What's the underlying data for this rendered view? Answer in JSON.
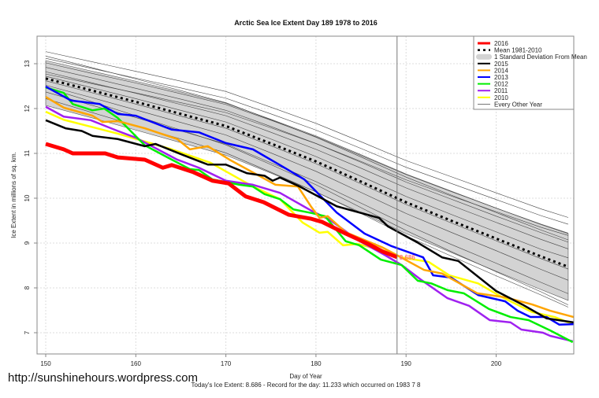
{
  "chart_data": {
    "type": "line",
    "title": "Arctic Sea Ice Extent Day 189 1978 to 2016",
    "xlabel": "Day of Year",
    "ylabel": "Ice Extent in millions of sq. km.",
    "subtitle": "Today's Ice Extent: 8.686  - Record for the day: 11.233 which occurred on 1983 7 8",
    "xlim": [
      149,
      209
    ],
    "ylim": [
      6.6,
      13.6
    ],
    "x_ticks": [
      150,
      160,
      170,
      180,
      190,
      200
    ],
    "y_ticks": [
      7,
      8,
      9,
      10,
      11,
      12,
      13
    ],
    "grid": true,
    "legend_position": "top-right",
    "current_day": 189,
    "current_value_label": "8.686",
    "legend": [
      {
        "label": "2016",
        "color": "#ff0000",
        "style": "thick"
      },
      {
        "label": "Mean 1981-2010",
        "color": "#000000",
        "style": "dashed"
      },
      {
        "label": "1 Standard Deviation From Mean",
        "color": "#d3d3d3",
        "style": "band"
      },
      {
        "label": "2015",
        "color": "#000000",
        "style": "line"
      },
      {
        "label": "2014",
        "color": "#ffa500",
        "style": "line"
      },
      {
        "label": "2013",
        "color": "#0000ff",
        "style": "line"
      },
      {
        "label": "2012",
        "color": "#00ee00",
        "style": "line"
      },
      {
        "label": "2011",
        "color": "#a020f0",
        "style": "line"
      },
      {
        "label": "2010",
        "color": "#ffff00",
        "style": "line"
      },
      {
        "label": "Every Other Year",
        "color": "#555555",
        "style": "thin"
      }
    ],
    "grid_days": [
      150,
      155,
      160,
      165,
      170,
      175,
      180,
      185,
      190,
      195,
      200,
      205,
      208
    ],
    "mean": [
      12.67,
      12.41,
      12.15,
      11.88,
      11.61,
      11.22,
      10.82,
      10.37,
      9.91,
      9.5,
      9.1,
      8.7,
      8.47
    ],
    "sd_upper": [
      13.07,
      12.84,
      12.61,
      12.37,
      12.12,
      11.76,
      11.39,
      10.97,
      10.54,
      10.16,
      9.78,
      9.41,
      9.21
    ],
    "sd_lower": [
      12.07,
      11.8,
      11.52,
      11.24,
      10.96,
      10.56,
      10.14,
      9.68,
      9.21,
      8.79,
      8.37,
      7.96,
      7.72
    ],
    "other_years": [
      [
        13.27,
        13.05,
        12.83,
        12.61,
        12.38,
        12.03,
        11.67,
        11.26,
        10.84,
        10.48,
        10.12,
        9.76,
        9.57
      ],
      [
        13.12,
        12.9,
        12.68,
        12.46,
        12.23,
        11.88,
        11.52,
        11.11,
        10.69,
        10.33,
        9.97,
        9.61,
        9.42
      ],
      [
        13.02,
        12.79,
        12.57,
        12.33,
        12.09,
        11.74,
        11.37,
        10.95,
        10.53,
        10.15,
        9.78,
        9.42,
        9.22
      ],
      [
        12.92,
        12.69,
        12.45,
        12.21,
        11.96,
        11.6,
        11.22,
        10.8,
        10.36,
        9.98,
        9.6,
        9.23,
        9.02
      ],
      [
        12.82,
        12.58,
        12.34,
        12.09,
        11.84,
        11.47,
        11.09,
        10.67,
        10.23,
        9.84,
        9.46,
        9.08,
        8.87
      ],
      [
        12.72,
        12.47,
        12.22,
        11.96,
        11.7,
        11.32,
        10.93,
        10.49,
        10.04,
        9.64,
        9.25,
        8.86,
        8.67
      ],
      [
        12.62,
        12.36,
        12.1,
        11.83,
        11.56,
        11.17,
        10.77,
        10.32,
        9.86,
        9.45,
        9.05,
        8.65,
        8.42
      ],
      [
        12.52,
        12.25,
        11.97,
        11.69,
        11.41,
        11.01,
        10.6,
        10.13,
        9.66,
        9.24,
        8.83,
        8.41,
        8.17
      ],
      [
        12.37,
        12.08,
        11.8,
        11.5,
        11.21,
        10.79,
        10.37,
        9.89,
        9.41,
        8.97,
        8.55,
        8.12,
        7.87
      ],
      [
        12.22,
        11.92,
        11.62,
        11.32,
        11.01,
        10.58,
        10.14,
        9.66,
        9.16,
        8.71,
        8.27,
        7.84,
        7.57
      ],
      [
        12.47,
        12.16,
        11.84,
        11.52,
        11.19,
        10.75,
        10.3,
        9.79,
        9.28,
        8.81,
        8.36,
        7.91,
        7.62
      ],
      [
        13.17,
        12.92,
        12.66,
        12.4,
        12.13,
        11.75,
        11.36,
        10.92,
        10.47,
        10.07,
        9.68,
        9.29,
        9.07
      ],
      [
        12.77,
        12.56,
        12.35,
        12.13,
        11.91,
        11.57,
        11.22,
        10.82,
        10.41,
        10.05,
        9.7,
        9.35,
        9.17
      ]
    ],
    "series": [
      {
        "name": "2010",
        "color": "#ffff00",
        "points": [
          [
            150,
            11.93
          ],
          [
            152,
            11.75
          ],
          [
            158,
            11.44
          ],
          [
            164,
            11.09
          ],
          [
            168.3,
            10.79
          ],
          [
            173,
            10.26
          ],
          [
            176,
            9.98
          ],
          [
            178.5,
            9.46
          ],
          [
            180.4,
            9.23
          ],
          [
            181.3,
            9.25
          ],
          [
            183,
            8.95
          ],
          [
            184.6,
            8.98
          ],
          [
            187.4,
            8.84
          ],
          [
            189.5,
            8.68
          ],
          [
            192.5,
            8.58
          ],
          [
            194.8,
            8.28
          ],
          [
            198,
            8.1
          ],
          [
            200.5,
            7.81
          ],
          [
            204,
            7.46
          ],
          [
            206.5,
            7.35
          ],
          [
            208.5,
            7.19
          ]
        ]
      },
      {
        "name": "2011",
        "color": "#a020f0",
        "points": [
          [
            150,
            12.04
          ],
          [
            152,
            11.82
          ],
          [
            155,
            11.74
          ],
          [
            158,
            11.5
          ],
          [
            160,
            11.35
          ],
          [
            164.6,
            10.86
          ],
          [
            167,
            10.68
          ],
          [
            170,
            10.39
          ],
          [
            173,
            10.3
          ],
          [
            176,
            10.12
          ],
          [
            179.5,
            9.72
          ],
          [
            181.6,
            9.51
          ],
          [
            184.6,
            9.07
          ],
          [
            187.5,
            8.75
          ],
          [
            189.5,
            8.51
          ],
          [
            191.6,
            8.19
          ],
          [
            194.6,
            7.77
          ],
          [
            197,
            7.6
          ],
          [
            199.3,
            7.28
          ],
          [
            201.6,
            7.23
          ],
          [
            202.8,
            7.07
          ],
          [
            205.2,
            7.0
          ],
          [
            206,
            6.93
          ],
          [
            208.5,
            6.81
          ]
        ]
      },
      {
        "name": "2012",
        "color": "#00ee00",
        "points": [
          [
            150,
            12.47
          ],
          [
            152,
            12.35
          ],
          [
            153,
            12.1
          ],
          [
            155.2,
            11.96
          ],
          [
            156.5,
            12.0
          ],
          [
            158,
            11.79
          ],
          [
            161,
            11.18
          ],
          [
            164,
            10.86
          ],
          [
            166,
            10.65
          ],
          [
            167,
            10.63
          ],
          [
            168.5,
            10.42
          ],
          [
            171.5,
            10.3
          ],
          [
            173,
            10.26
          ],
          [
            174.3,
            10.09
          ],
          [
            176,
            9.98
          ],
          [
            177.5,
            9.75
          ],
          [
            179.5,
            9.67
          ],
          [
            181,
            9.6
          ],
          [
            183.3,
            9.04
          ],
          [
            184.8,
            8.95
          ],
          [
            187.2,
            8.63
          ],
          [
            189.5,
            8.51
          ],
          [
            191.3,
            8.16
          ],
          [
            192.8,
            8.1
          ],
          [
            194.6,
            7.95
          ],
          [
            196.4,
            7.88
          ],
          [
            199.2,
            7.53
          ],
          [
            201.6,
            7.35
          ],
          [
            203.6,
            7.28
          ],
          [
            206,
            7.05
          ],
          [
            208.5,
            6.79
          ]
        ]
      },
      {
        "name": "2013",
        "color": "#0000ff",
        "points": [
          [
            150,
            12.49
          ],
          [
            152.8,
            12.18
          ],
          [
            156,
            12.1
          ],
          [
            158,
            11.88
          ],
          [
            160,
            11.84
          ],
          [
            164,
            11.53
          ],
          [
            167,
            11.47
          ],
          [
            170,
            11.23
          ],
          [
            173,
            11.09
          ],
          [
            176,
            10.74
          ],
          [
            178.7,
            10.42
          ],
          [
            182.3,
            9.68
          ],
          [
            185.4,
            9.21
          ],
          [
            188.4,
            8.93
          ],
          [
            191.9,
            8.68
          ],
          [
            193,
            8.28
          ],
          [
            195,
            8.23
          ],
          [
            198,
            7.84
          ],
          [
            201,
            7.7
          ],
          [
            202.4,
            7.49
          ],
          [
            203.8,
            7.35
          ],
          [
            205.6,
            7.35
          ],
          [
            207,
            7.18
          ],
          [
            208.6,
            7.19
          ]
        ]
      },
      {
        "name": "2014",
        "color": "#ffa500",
        "points": [
          [
            150,
            12.26
          ],
          [
            152,
            12.02
          ],
          [
            155.2,
            11.84
          ],
          [
            156.3,
            11.7
          ],
          [
            158,
            11.72
          ],
          [
            161,
            11.56
          ],
          [
            164.6,
            11.32
          ],
          [
            166,
            11.09
          ],
          [
            168,
            11.16
          ],
          [
            170.4,
            10.86
          ],
          [
            173.6,
            10.51
          ],
          [
            175.5,
            10.3
          ],
          [
            178,
            10.26
          ],
          [
            179.5,
            9.8
          ],
          [
            180.4,
            9.56
          ],
          [
            181.3,
            9.6
          ],
          [
            183.3,
            9.24
          ],
          [
            187.4,
            8.9
          ],
          [
            188.8,
            8.75
          ],
          [
            192,
            8.4
          ],
          [
            194,
            8.32
          ],
          [
            197.9,
            7.88
          ],
          [
            201,
            7.79
          ],
          [
            204,
            7.63
          ],
          [
            206,
            7.49
          ],
          [
            208.6,
            7.35
          ]
        ]
      },
      {
        "name": "2015",
        "color": "#000000",
        "points": [
          [
            150,
            11.74
          ],
          [
            152.2,
            11.56
          ],
          [
            154,
            11.5
          ],
          [
            155.2,
            11.39
          ],
          [
            158,
            11.32
          ],
          [
            161,
            11.16
          ],
          [
            162.2,
            11.21
          ],
          [
            165.3,
            10.96
          ],
          [
            168,
            10.75
          ],
          [
            170,
            10.75
          ],
          [
            172.3,
            10.56
          ],
          [
            174.3,
            10.5
          ],
          [
            175.2,
            10.39
          ],
          [
            176,
            10.46
          ],
          [
            178.2,
            10.26
          ],
          [
            182.3,
            9.82
          ],
          [
            187,
            9.56
          ],
          [
            188,
            9.37
          ],
          [
            191.2,
            9.02
          ],
          [
            194,
            8.68
          ],
          [
            195.8,
            8.6
          ],
          [
            200,
            7.93
          ],
          [
            202.9,
            7.63
          ],
          [
            205.6,
            7.32
          ],
          [
            208.6,
            7.23
          ]
        ]
      },
      {
        "name": "2016",
        "color": "#ff0000",
        "points": [
          [
            150,
            11.21
          ],
          [
            152,
            11.09
          ],
          [
            153,
            11.0
          ],
          [
            156.6,
            11.0
          ],
          [
            158,
            10.91
          ],
          [
            161,
            10.86
          ],
          [
            163,
            10.68
          ],
          [
            164,
            10.74
          ],
          [
            166.4,
            10.58
          ],
          [
            168.5,
            10.39
          ],
          [
            170.3,
            10.33
          ],
          [
            172.2,
            10.04
          ],
          [
            174.2,
            9.91
          ],
          [
            177,
            9.63
          ],
          [
            179.5,
            9.54
          ],
          [
            180.7,
            9.47
          ],
          [
            183.3,
            9.21
          ],
          [
            185.8,
            8.98
          ],
          [
            187.4,
            8.81
          ],
          [
            189,
            8.686
          ]
        ]
      }
    ]
  },
  "footer": {
    "url": "http://sunshinehours.wordpress.com"
  }
}
